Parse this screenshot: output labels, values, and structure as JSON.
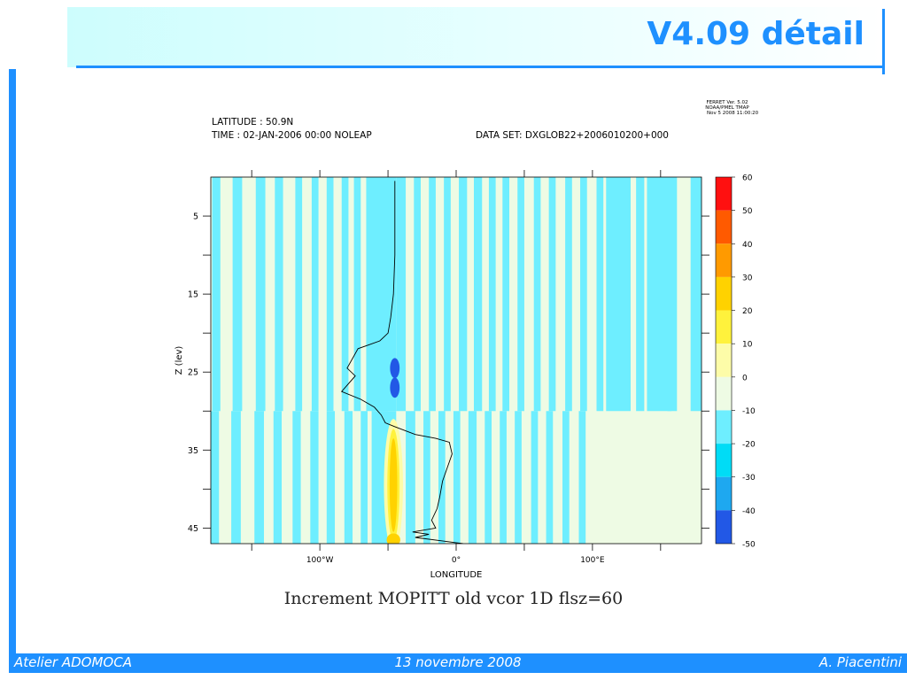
{
  "slide": {
    "title": "V4.09 détail",
    "footer_left": "Atelier ADOMOCA",
    "footer_center": "13 novembre 2008",
    "footer_right": "A. Piacentini",
    "caption": "Increment MOPITT old vcor 1D flsz=60"
  },
  "chart_data": {
    "type": "heatmap",
    "header": {
      "ferret_line1": "FERRET Ver. 5.02",
      "ferret_line2": "NOAA/PMEL TMAP",
      "ferret_line3": "Nov  5 2008 11:00:20",
      "latitude": "LATITUDE : 50.9N",
      "time": "TIME : 02-JAN-2006 00:00 NOLEAP",
      "dataset": "DATA SET: DXGLOB22+2006010200+000"
    },
    "xlabel": "LONGITUDE",
    "ylabel": "Z (lev)",
    "xlim": [
      -180,
      180
    ],
    "ylim": [
      47,
      0
    ],
    "x_ticks": [
      {
        "value": -100,
        "label": "100°W"
      },
      {
        "value": 0,
        "label": "0°"
      },
      {
        "value": 100,
        "label": "100°E"
      }
    ],
    "x_minor_ticks": [
      -150,
      -100,
      -50,
      0,
      50,
      100,
      150
    ],
    "y_ticks": [
      {
        "value": 5,
        "label": "5"
      },
      {
        "value": 15,
        "label": "15"
      },
      {
        "value": 25,
        "label": "25"
      },
      {
        "value": 35,
        "label": "35"
      },
      {
        "value": 45,
        "label": "45"
      }
    ],
    "y_minor_ticks": [
      10,
      20,
      30,
      40
    ],
    "colorbar": {
      "labels": [
        "60",
        "50",
        "40",
        "30",
        "20",
        "10",
        "0",
        "-10",
        "-20",
        "-30",
        "-40",
        "-50"
      ],
      "colors": [
        "#ff1010",
        "#ff5a00",
        "#ff9a00",
        "#ffd200",
        "#fff23c",
        "#fdfca8",
        "#eefbe4",
        "#6eeeff",
        "#00dcf6",
        "#1ea8f0",
        "#2258e6",
        "#1010ff"
      ]
    },
    "field": {
      "background_light": "#eefbe4",
      "background_blue": "#6eeeff",
      "level_split": 30,
      "stripes_upper": [
        [
          -179,
          -173
        ],
        [
          -164,
          -157
        ],
        [
          -147,
          -140
        ],
        [
          -133,
          -127
        ],
        [
          -118,
          -113
        ],
        [
          -106,
          -101
        ],
        [
          -95,
          -90
        ],
        [
          -84,
          -79
        ],
        [
          -75,
          -70
        ],
        [
          -66,
          -60
        ],
        [
          -55,
          -50
        ],
        [
          -44,
          -37
        ],
        [
          -31,
          -26
        ],
        [
          -20,
          -15
        ],
        [
          -9,
          -4
        ],
        [
          2,
          8
        ],
        [
          13,
          19
        ],
        [
          24,
          29
        ],
        [
          34,
          39
        ],
        [
          45,
          50
        ],
        [
          57,
          62
        ],
        [
          68,
          73
        ],
        [
          80,
          85
        ],
        [
          91,
          96
        ],
        [
          103,
          108
        ],
        [
          132,
          138
        ],
        [
          155,
          162
        ],
        [
          172,
          180
        ]
      ],
      "stripes_lower": [
        [
          -180,
          -174
        ],
        [
          -165,
          -158
        ],
        [
          -148,
          -141
        ],
        [
          -134,
          -128
        ],
        [
          -120,
          -114
        ],
        [
          -107,
          -101
        ],
        [
          -95,
          -89
        ],
        [
          -82,
          -76
        ],
        [
          -70,
          -65
        ],
        [
          -37,
          -30
        ],
        [
          -24,
          -19
        ],
        [
          -13,
          -8
        ],
        [
          -2,
          3
        ],
        [
          9,
          15
        ],
        [
          21,
          26
        ],
        [
          32,
          37
        ],
        [
          43,
          48
        ],
        [
          55,
          60
        ],
        [
          66,
          71
        ],
        [
          78,
          83
        ],
        [
          90,
          95
        ]
      ],
      "wide_blue_upper": [
        [
          -62,
          -44
        ],
        [
          110,
          128
        ],
        [
          140,
          158
        ]
      ],
      "wide_blue_lower": [
        [
          -62,
          -44
        ]
      ],
      "blobs": [
        {
          "x": -45,
          "z": 24.5,
          "rx": 3.5,
          "rz": 1.3,
          "level": "-40"
        },
        {
          "x": -45,
          "z": 27.0,
          "rx": 3.5,
          "rz": 1.3,
          "level": "-40"
        },
        {
          "x": -46,
          "z": 39.5,
          "rx": 7,
          "rz": 8.5,
          "level": "10"
        },
        {
          "x": -46,
          "z": 39.5,
          "rx": 4.5,
          "rz": 7.2,
          "level": "20"
        },
        {
          "x": -46,
          "z": 39.5,
          "rx": 2.8,
          "rz": 6.0,
          "level": "30"
        },
        {
          "x": -46,
          "z": 46.5,
          "rx": 5,
          "rz": 0.8,
          "level": "30"
        }
      ]
    },
    "profile": {
      "x": [
        -45,
        -45,
        -45,
        -46,
        -48,
        -50,
        -56,
        -64,
        -72,
        -80,
        -74,
        -84,
        -70,
        -60,
        -55,
        -52,
        -45,
        -30,
        -15,
        -5,
        -3,
        -6,
        -10,
        -12,
        -14,
        -18,
        -15,
        -32,
        -20,
        -30,
        5
      ],
      "z": [
        0.5,
        5,
        10,
        15,
        18,
        20,
        21,
        21.5,
        22,
        24.5,
        25.5,
        27.5,
        28.5,
        29.5,
        30.5,
        31.5,
        32,
        33,
        33.5,
        34,
        35.5,
        37,
        39,
        41,
        42.5,
        44,
        45,
        45.5,
        45.8,
        46.2,
        47
      ]
    }
  }
}
